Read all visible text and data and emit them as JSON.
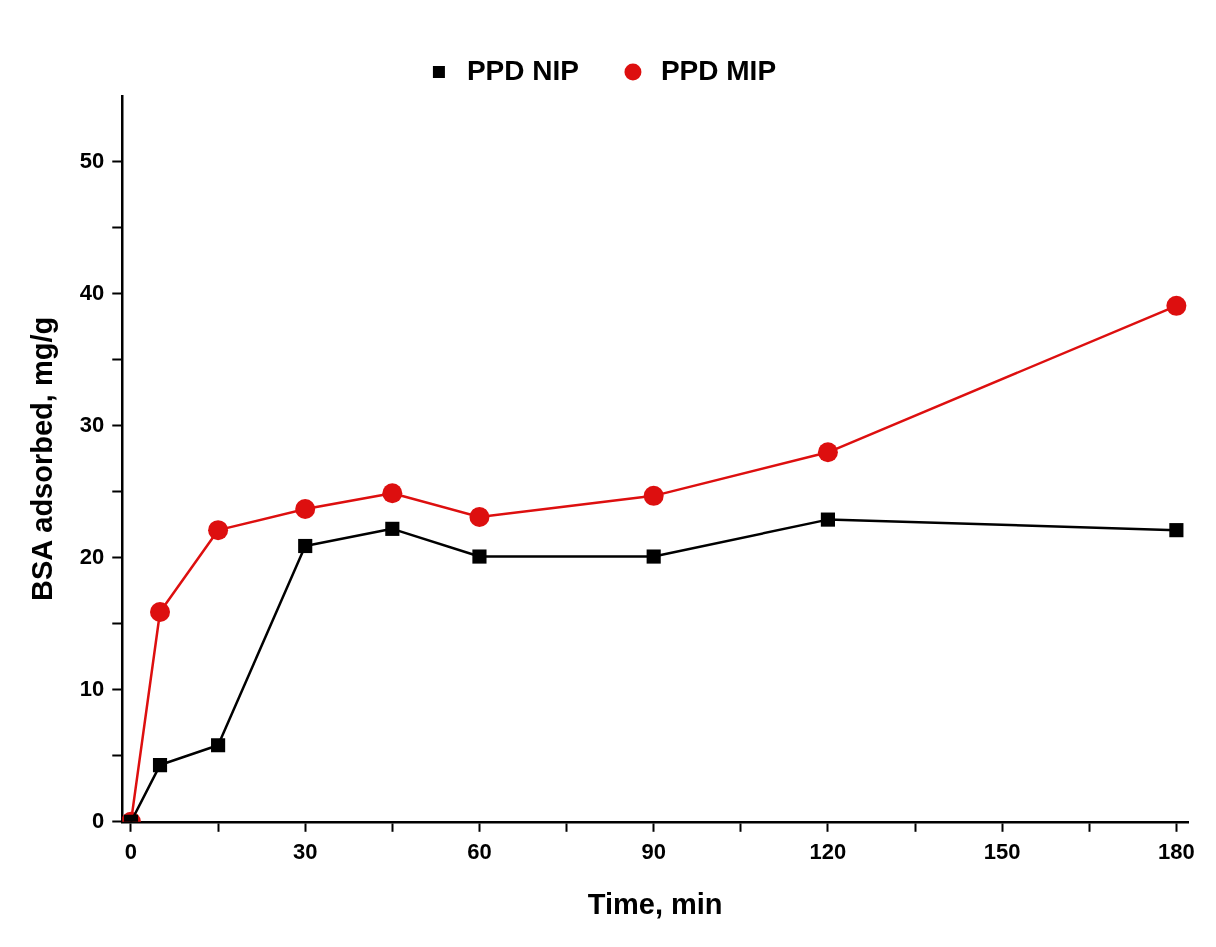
{
  "chart_data": {
    "type": "line",
    "xlabel": "Time, min",
    "ylabel": "BSA adsorbed, mg/g",
    "x": [
      0,
      5,
      15,
      30,
      45,
      60,
      90,
      120,
      180
    ],
    "series": [
      {
        "name": "PPD NIP",
        "color": "#000000",
        "marker": "square",
        "values": [
          0,
          4.3,
          5.8,
          20.9,
          22.2,
          20.1,
          20.1,
          22.9,
          22.1
        ]
      },
      {
        "name": "PPD MIP",
        "color": "#dd0f0f",
        "marker": "circle",
        "values": [
          0,
          15.9,
          22.1,
          23.7,
          24.9,
          23.1,
          24.7,
          28.0,
          39.1
        ]
      }
    ],
    "xlim": [
      -1.5,
      182
    ],
    "xticks": [
      0,
      {
        "value": 15,
        "label": null
      },
      30,
      {
        "value": 45,
        "label": null
      },
      60,
      {
        "value": 75,
        "label": null
      },
      90,
      {
        "value": 105,
        "label": null
      },
      120,
      150,
      {
        "value": 135,
        "label": null
      },
      {
        "value": 165,
        "label": null
      },
      180
    ],
    "ylim": [
      0,
      55
    ],
    "yticks": [
      0,
      {
        "value": 5,
        "label": null
      },
      10,
      {
        "value": 15,
        "label": null
      },
      20,
      {
        "value": 25,
        "label": null
      },
      30,
      {
        "value": 35,
        "label": null
      },
      40,
      {
        "value": 45,
        "label": null
      },
      50
    ],
    "grid": false,
    "legend": "top",
    "line_style": "solid"
  }
}
